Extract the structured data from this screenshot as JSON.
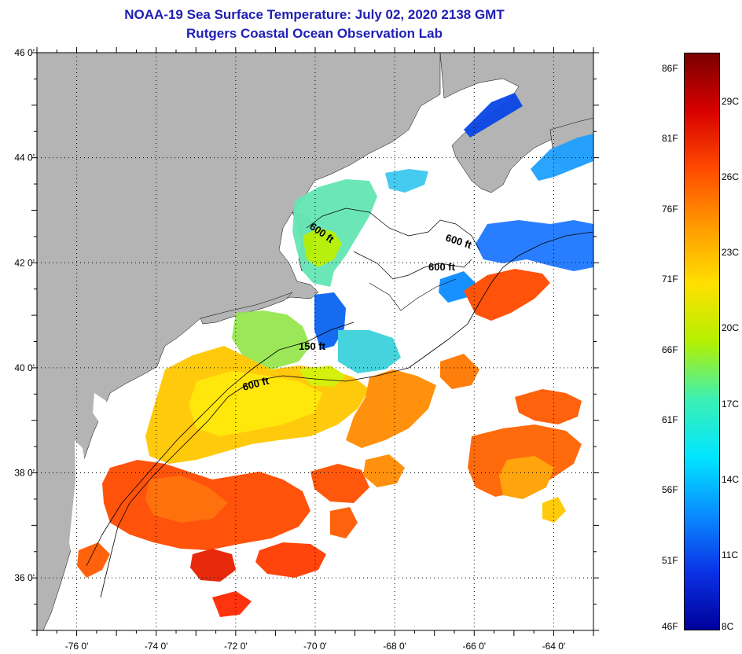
{
  "title": {
    "line1": "NOAA-19 Sea Surface Temperature:  July 02, 2020 2138 GMT",
    "line2": "Rutgers Coastal Ocean Observation Lab"
  },
  "map": {
    "lat_range": [
      35,
      46
    ],
    "lon_range": [
      -77,
      -63
    ],
    "lat_ticks": [
      {
        "value": 46,
        "label": "46 0'"
      },
      {
        "value": 44,
        "label": "44 0'"
      },
      {
        "value": 42,
        "label": "42 0'"
      },
      {
        "value": 40,
        "label": "40 0'"
      },
      {
        "value": 38,
        "label": "38 0'"
      },
      {
        "value": 36,
        "label": "36 0'"
      }
    ],
    "lon_ticks": [
      {
        "value": -76,
        "label": "-76 0'"
      },
      {
        "value": -74,
        "label": "-74 0'"
      },
      {
        "value": -72,
        "label": "-72 0'"
      },
      {
        "value": -70,
        "label": "-70 0'"
      },
      {
        "value": -68,
        "label": "-68 0'"
      },
      {
        "value": -66,
        "label": "-66 0'"
      },
      {
        "value": -64,
        "label": "-64 0'"
      }
    ],
    "isobath_labels": [
      "600 ft",
      "600 ft",
      "600 ft",
      "150 ft",
      "600 ft"
    ],
    "colors": {
      "land": "#b4b4b4",
      "grid": "#000000"
    }
  },
  "colorbar": {
    "fahrenheit_labels": [
      "86F",
      "81F",
      "76F",
      "71F",
      "66F",
      "61F",
      "56F",
      "51F",
      "46F"
    ],
    "celsius_labels": [
      "29C",
      "26C",
      "23C",
      "20C",
      "17C",
      "14C",
      "11C",
      "8C"
    ],
    "gradient_colors": [
      "#7a0000",
      "#d80000",
      "#ff4a00",
      "#ff9a00",
      "#ffe000",
      "#b4f000",
      "#3cf0b4",
      "#00e6ff",
      "#0a8cff",
      "#0a32e6",
      "#00009a"
    ]
  }
}
